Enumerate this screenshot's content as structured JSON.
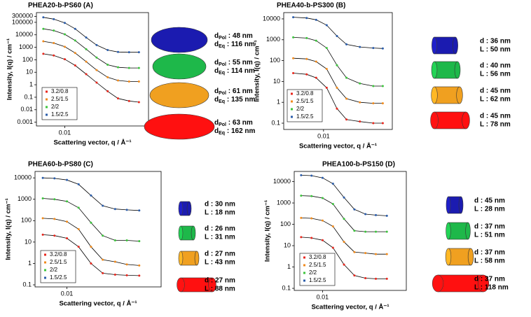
{
  "chart_data": [
    {
      "type": "scatter",
      "title": "PHEA20-b-PS60 (A)",
      "xlabel": "Scattering vector, q / Å⁻¹",
      "ylabel": "Intensity, I(q) / cm⁻¹",
      "log_x": true,
      "log_y": true,
      "xlim": [
        0.004,
        0.15
      ],
      "xticks": [
        0.01
      ],
      "ylim": [
        0.0005,
        600000
      ],
      "yticks": [
        300000,
        100000,
        10000,
        1000,
        100,
        10,
        1,
        0.1,
        0.01,
        0.001
      ],
      "x": [
        0.005,
        0.007,
        0.01,
        0.014,
        0.02,
        0.028,
        0.04,
        0.056,
        0.08,
        0.11
      ],
      "series": [
        {
          "name": "3.2/0.8",
          "color": "#e8261c",
          "values": [
            300,
            220,
            110,
            35,
            7,
            1.5,
            0.3,
            0.08,
            0.05,
            0.04
          ]
        },
        {
          "name": "2.5/1.5",
          "color": "#f08a1c",
          "values": [
            3000,
            2200,
            1100,
            350,
            70,
            15,
            4,
            2.2,
            1.8,
            1.8
          ]
        },
        {
          "name": "2/2",
          "color": "#3cc43c",
          "values": [
            30000,
            22000,
            11000,
            3500,
            700,
            150,
            40,
            25,
            22,
            22
          ]
        },
        {
          "name": "1.5/2.5",
          "color": "#2a5caa",
          "values": [
            250000,
            180000,
            90000,
            30000,
            6000,
            1500,
            600,
            420,
            400,
            400
          ]
        }
      ],
      "shapes": [
        {
          "color": "#1b1bb0",
          "lines": [
            [
              "d",
              "Pol",
              " : 48 nm"
            ],
            [
              "d",
              "Eq",
              " : 116 nm"
            ]
          ]
        },
        {
          "color": "#1eb84a",
          "lines": [
            [
              "d",
              "Pol",
              " : 55 nm"
            ],
            [
              "d",
              "Eq",
              " : 114 nm"
            ]
          ]
        },
        {
          "color": "#f0a020",
          "lines": [
            [
              "d",
              "Pol",
              " : 61 nm"
            ],
            [
              "d",
              "Eq",
              " : 135 nm"
            ]
          ]
        },
        {
          "color": "#ff1010",
          "lines": [
            [
              "d",
              "Pol",
              " : 63 nm"
            ],
            [
              "d",
              "Eq",
              " : 162 nm"
            ]
          ]
        }
      ]
    },
    {
      "type": "scatter",
      "title": "PHEA40-b-PS300 (B)",
      "xlabel": "Scattering vector, q / Å⁻¹",
      "ylabel": "Intensity, I(q) / cm⁻¹",
      "log_x": true,
      "log_y": true,
      "xlim": [
        0.003,
        0.08
      ],
      "xticks": [
        0.01
      ],
      "ylim": [
        0.05,
        20000
      ],
      "yticks": [
        10000,
        1000,
        100,
        10,
        1,
        0.1
      ],
      "x": [
        0.004,
        0.006,
        0.008,
        0.011,
        0.015,
        0.02,
        0.03,
        0.045,
        0.06
      ],
      "series": [
        {
          "name": "3.2/0.8",
          "color": "#e8261c",
          "values": [
            25,
            22,
            15,
            5,
            0.5,
            0.15,
            0.12,
            0.1,
            0.1
          ]
        },
        {
          "name": "2.5/1.5",
          "color": "#f08a1c",
          "values": [
            130,
            120,
            90,
            40,
            5,
            1.5,
            1,
            0.9,
            0.9
          ]
        },
        {
          "name": "2/2",
          "color": "#3cc43c",
          "values": [
            1300,
            1200,
            900,
            400,
            60,
            15,
            8,
            6,
            6
          ]
        },
        {
          "name": "1.5/2.5",
          "color": "#2a5caa",
          "values": [
            12000,
            11000,
            9000,
            5000,
            1500,
            600,
            450,
            400,
            380
          ]
        }
      ],
      "shapes": [
        {
          "color": "#1b1bb0",
          "lines": [
            "d : 36 nm",
            "L : 50 nm"
          ]
        },
        {
          "color": "#1eb84a",
          "lines": [
            "d : 40 nm",
            "L : 56 nm"
          ]
        },
        {
          "color": "#f0a020",
          "lines": [
            "d : 45 nm",
            "L : 62 nm"
          ]
        },
        {
          "color": "#ff1010",
          "lines": [
            "d : 45 nm",
            "L : 78 nm"
          ]
        }
      ]
    },
    {
      "type": "scatter",
      "title": "PHEA60-b-PS80 (C)",
      "xlabel": "Scattering vector, q / Å⁻¹",
      "ylabel": "Intensity, I(q) / cm⁻¹",
      "log_x": true,
      "log_y": true,
      "xlim": [
        0.004,
        0.15
      ],
      "xticks": [
        0.01
      ],
      "ylim": [
        0.08,
        20000
      ],
      "yticks": [
        10000,
        1000,
        100,
        10,
        1,
        0.1
      ],
      "x": [
        0.005,
        0.007,
        0.01,
        0.014,
        0.02,
        0.028,
        0.04,
        0.056,
        0.08
      ],
      "series": [
        {
          "name": "3.2/0.8",
          "color": "#e8261c",
          "values": [
            22,
            20,
            15,
            6,
            1,
            0.35,
            0.3,
            0.28,
            0.27
          ]
        },
        {
          "name": "2.5/1.5",
          "color": "#f08a1c",
          "values": [
            130,
            120,
            90,
            40,
            6,
            1.5,
            1.2,
            0.9,
            0.8
          ]
        },
        {
          "name": "2/2",
          "color": "#3cc43c",
          "values": [
            1100,
            1000,
            800,
            400,
            80,
            20,
            12,
            12,
            11
          ]
        },
        {
          "name": "1.5/2.5",
          "color": "#2a5caa",
          "values": [
            10000,
            9500,
            8000,
            5000,
            1500,
            500,
            350,
            320,
            300
          ]
        }
      ],
      "shapes": [
        {
          "color": "#1b1bb0",
          "lines": [
            "d : 30 nm",
            "L : 18 nm"
          ]
        },
        {
          "color": "#1eb84a",
          "lines": [
            "d : 26 nm",
            "L : 31 nm"
          ]
        },
        {
          "color": "#f0a020",
          "lines": [
            "d : 27 nm",
            "L : 43 nm"
          ]
        },
        {
          "color": "#ff1010",
          "lines": [
            "d : 27 nm",
            "L : 88 nm"
          ]
        }
      ]
    },
    {
      "type": "scatter",
      "title": "PHEA100-b-PS150 (D)",
      "xlabel": "Scattering vector, q / Å⁻¹",
      "ylabel": "Intensity, I(q) / cm⁻¹",
      "log_x": true,
      "log_y": true,
      "xlim": [
        0.004,
        0.15
      ],
      "xticks": [
        0.01
      ],
      "ylim": [
        0.08,
        30000
      ],
      "yticks": [
        10000,
        1000,
        100,
        10,
        1,
        0.1
      ],
      "x": [
        0.005,
        0.007,
        0.01,
        0.014,
        0.02,
        0.028,
        0.04,
        0.056,
        0.08
      ],
      "series": [
        {
          "name": "3.2/0.8",
          "color": "#e8261c",
          "values": [
            25,
            23,
            18,
            8,
            1.3,
            0.4,
            0.3,
            0.28,
            0.28
          ]
        },
        {
          "name": "2.5/1.5",
          "color": "#f08a1c",
          "values": [
            200,
            190,
            150,
            80,
            15,
            5,
            4.5,
            4,
            4
          ]
        },
        {
          "name": "2/2",
          "color": "#3cc43c",
          "values": [
            2200,
            2100,
            1700,
            900,
            180,
            50,
            45,
            45,
            45
          ]
        },
        {
          "name": "1.5/2.5",
          "color": "#2a5caa",
          "values": [
            20000,
            19000,
            15000,
            8000,
            1800,
            500,
            300,
            270,
            250
          ]
        }
      ],
      "shapes": [
        {
          "color": "#1b1bb0",
          "lines": [
            "d : 45 nm",
            "L : 28 nm"
          ]
        },
        {
          "color": "#1eb84a",
          "lines": [
            "d : 37 nm",
            "L : 51 nm"
          ]
        },
        {
          "color": "#f0a020",
          "lines": [
            "d : 37 nm",
            "L : 58 nm"
          ]
        },
        {
          "color": "#ff1010",
          "lines": [
            "d : 37 nm",
            "L : 118 nm"
          ]
        }
      ]
    }
  ]
}
